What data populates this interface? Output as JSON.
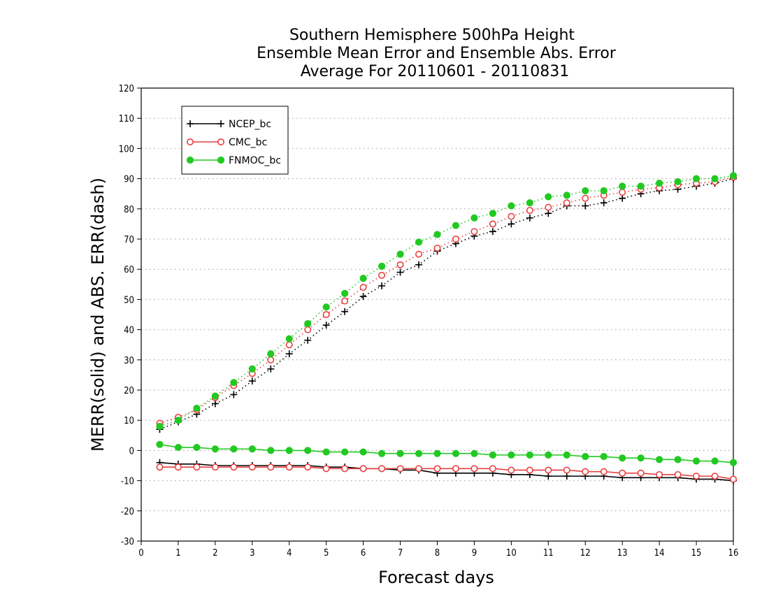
{
  "chart_data": {
    "type": "line",
    "title_lines": [
      "Southern Hemisphere 500hPa Height",
      "Ensemble Mean Error and Ensemble Abs. Error",
      "Average For 20110601 - 20110831"
    ],
    "xlabel": "Forecast days",
    "ylabel": "MERR(solid) and ABS. ERR(dash)",
    "xlim": [
      0,
      16
    ],
    "ylim": [
      -30,
      120
    ],
    "xticks": [
      "0",
      "1",
      "2",
      "3",
      "4",
      "5",
      "6",
      "7",
      "8",
      "9",
      "10",
      "11",
      "12",
      "13",
      "14",
      "15",
      "16"
    ],
    "yticks": [
      "120",
      "110",
      "100",
      "90",
      "80",
      "70",
      "60",
      "50",
      "40",
      "30",
      "20",
      "10",
      "0",
      "-10",
      "-20",
      "-30"
    ],
    "x": [
      0.5,
      1,
      1.5,
      2,
      2.5,
      3,
      3.5,
      4,
      4.5,
      5,
      5.5,
      6,
      6.5,
      7,
      7.5,
      8,
      8.5,
      9,
      9.5,
      10,
      10.5,
      11,
      11.5,
      12,
      12.5,
      13,
      13.5,
      14,
      14.5,
      15,
      15.5,
      16
    ],
    "grid": "horizontal dotted",
    "legend_position": "top-left",
    "series": [
      {
        "name": "NCEP_bc",
        "color": "#000000",
        "marker": "plus",
        "abs_err": [
          7.0,
          9.5,
          12.0,
          15.5,
          18.5,
          23.0,
          27.0,
          32.0,
          36.5,
          41.5,
          46.0,
          51.0,
          54.5,
          59.0,
          61.5,
          66.0,
          68.5,
          71.0,
          72.5,
          75.0,
          77.0,
          78.5,
          81.0,
          81.0,
          82.0,
          83.5,
          85.0,
          86.0,
          86.5,
          87.5,
          88.5,
          90.0
        ],
        "mean_err": [
          -4.0,
          -4.5,
          -4.5,
          -5.0,
          -5.0,
          -5.0,
          -5.0,
          -5.0,
          -5.0,
          -5.5,
          -5.5,
          -6.0,
          -6.0,
          -6.5,
          -6.5,
          -7.5,
          -7.5,
          -7.5,
          -7.5,
          -8.0,
          -8.0,
          -8.5,
          -8.5,
          -8.5,
          -8.5,
          -9.0,
          -9.0,
          -9.0,
          -9.0,
          -9.5,
          -9.5,
          -10.0
        ]
      },
      {
        "name": "CMC_bc",
        "color": "#e84040",
        "marker": "open-circle",
        "abs_err": [
          9.0,
          11.0,
          13.5,
          17.5,
          21.5,
          25.5,
          30.0,
          35.0,
          40.0,
          45.0,
          49.5,
          54.0,
          58.0,
          61.5,
          65.0,
          67.0,
          70.0,
          72.5,
          75.0,
          77.5,
          79.5,
          80.5,
          82.0,
          83.5,
          84.5,
          85.5,
          86.5,
          87.0,
          88.0,
          88.5,
          89.0,
          90.5
        ],
        "mean_err": [
          -5.5,
          -5.5,
          -5.5,
          -5.5,
          -5.5,
          -5.5,
          -5.5,
          -5.5,
          -5.5,
          -6.0,
          -6.0,
          -6.0,
          -6.0,
          -6.0,
          -6.0,
          -6.0,
          -6.0,
          -6.0,
          -6.0,
          -6.5,
          -6.5,
          -6.5,
          -6.5,
          -7.0,
          -7.0,
          -7.5,
          -7.5,
          -8.0,
          -8.0,
          -8.5,
          -8.5,
          -9.5
        ]
      },
      {
        "name": "FNMOC_bc",
        "color": "#22c922",
        "marker": "filled-circle",
        "abs_err": [
          8.0,
          10.0,
          14.0,
          18.0,
          22.5,
          27.0,
          32.0,
          37.0,
          42.0,
          47.5,
          52.0,
          57.0,
          61.0,
          65.0,
          69.0,
          71.5,
          74.5,
          77.0,
          78.5,
          81.0,
          82.0,
          84.0,
          84.5,
          86.0,
          86.0,
          87.5,
          87.5,
          88.5,
          89.0,
          90.0,
          90.0,
          91.0
        ],
        "mean_err": [
          2.0,
          1.0,
          1.0,
          0.5,
          0.5,
          0.5,
          0.0,
          0.0,
          0.0,
          -0.5,
          -0.5,
          -0.5,
          -1.0,
          -1.0,
          -1.0,
          -1.0,
          -1.0,
          -1.0,
          -1.5,
          -1.5,
          -1.5,
          -1.5,
          -1.5,
          -2.0,
          -2.0,
          -2.5,
          -2.5,
          -3.0,
          -3.0,
          -3.5,
          -3.5,
          -4.0
        ]
      }
    ]
  }
}
